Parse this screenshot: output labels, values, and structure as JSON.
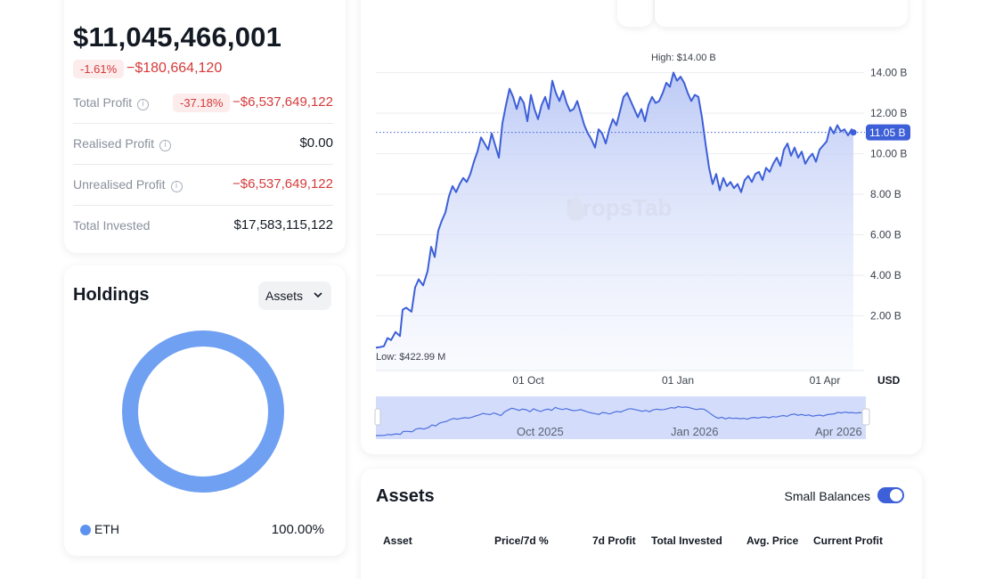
{
  "summary": {
    "total_value": "$11,045,466,001",
    "change_pct": "-1.61%",
    "change_value": "−$180,664,120",
    "rows": [
      {
        "label": "Total Profit",
        "pill": "-37.18%",
        "value": "−$6,537,649,122",
        "red": true,
        "info": true
      },
      {
        "label": "Realised Profit",
        "value": "$0.00",
        "red": false,
        "info": true
      },
      {
        "label": "Unrealised Profit",
        "value": "−$6,537,649,122",
        "red": true,
        "info": true
      },
      {
        "label": "Total Invested",
        "value": "$17,583,115,122",
        "red": false,
        "info": false
      }
    ]
  },
  "holdings": {
    "title": "Holdings",
    "select_label": "Assets",
    "legend": [
      {
        "name": "ETH",
        "pct": "100.00%",
        "color": "#5d93ef"
      }
    ]
  },
  "chart": {
    "high_label": "High: $14.00 B",
    "low_label": "Low: $422.99 M",
    "current_badge": "11.05 B",
    "currency": "USD",
    "watermark": "DropsTab",
    "navigator_labels": [
      "Oct 2025",
      "Jan 2026",
      "Apr 2026"
    ]
  },
  "chart_data": {
    "type": "area",
    "y_unit": "B",
    "ylim": [
      0,
      14.8
    ],
    "y_ticks": [
      "2.00 B",
      "4.00 B",
      "6.00 B",
      "8.00 B",
      "10.00 B",
      "12.00 B",
      "14.00 B"
    ],
    "x_ticks": [
      "01 Oct",
      "01 Jan",
      "01 Apr"
    ],
    "points": [
      [
        0,
        0.42
      ],
      [
        4,
        0.45
      ],
      [
        9,
        0.5
      ],
      [
        13,
        0.9
      ],
      [
        17,
        0.8
      ],
      [
        22,
        1.2
      ],
      [
        27,
        1.0
      ],
      [
        30,
        2.3
      ],
      [
        34,
        2.4
      ],
      [
        40,
        2.2
      ],
      [
        44,
        3.4
      ],
      [
        48,
        3.8
      ],
      [
        53,
        3.5
      ],
      [
        58,
        4.2
      ],
      [
        62,
        5.4
      ],
      [
        66,
        4.9
      ],
      [
        70,
        6.2
      ],
      [
        74,
        6.7
      ],
      [
        78,
        7.1
      ],
      [
        82,
        7.9
      ],
      [
        86,
        8.4
      ],
      [
        90,
        8.1
      ],
      [
        94,
        8.5
      ],
      [
        98,
        8.8
      ],
      [
        102,
        8.6
      ],
      [
        106,
        9.0
      ],
      [
        110,
        9.6
      ],
      [
        114,
        10.1
      ],
      [
        118,
        10.8
      ],
      [
        122,
        10.5
      ],
      [
        126,
        10.2
      ],
      [
        130,
        11.0
      ],
      [
        134,
        10.4
      ],
      [
        138,
        9.8
      ],
      [
        142,
        11.5
      ],
      [
        146,
        12.4
      ],
      [
        150,
        13.2
      ],
      [
        154,
        12.8
      ],
      [
        158,
        12.2
      ],
      [
        162,
        12.8
      ],
      [
        166,
        12.5
      ],
      [
        170,
        11.6
      ],
      [
        174,
        12.9
      ],
      [
        178,
        12.2
      ],
      [
        182,
        11.7
      ],
      [
        186,
        12.4
      ],
      [
        190,
        12.8
      ],
      [
        194,
        12.2
      ],
      [
        198,
        13.6
      ],
      [
        202,
        13.0
      ],
      [
        206,
        12.6
      ],
      [
        210,
        13.1
      ],
      [
        214,
        12.5
      ],
      [
        218,
        12.1
      ],
      [
        222,
        12.2
      ],
      [
        226,
        12.6
      ],
      [
        230,
        12.0
      ],
      [
        234,
        11.4
      ],
      [
        238,
        11.0
      ],
      [
        242,
        10.7
      ],
      [
        246,
        10.3
      ],
      [
        250,
        11.2
      ],
      [
        254,
        11.0
      ],
      [
        258,
        10.5
      ],
      [
        262,
        11.2
      ],
      [
        266,
        11.7
      ],
      [
        270,
        11.4
      ],
      [
        274,
        12.1
      ],
      [
        278,
        12.8
      ],
      [
        282,
        13.0
      ],
      [
        286,
        12.6
      ],
      [
        290,
        12.2
      ],
      [
        294,
        11.8
      ],
      [
        298,
        12.2
      ],
      [
        302,
        11.6
      ],
      [
        306,
        12.4
      ],
      [
        310,
        12.8
      ],
      [
        314,
        12.5
      ],
      [
        318,
        12.6
      ],
      [
        322,
        13.0
      ],
      [
        326,
        13.5
      ],
      [
        330,
        13.3
      ],
      [
        334,
        14.0
      ],
      [
        338,
        13.6
      ],
      [
        342,
        13.8
      ],
      [
        346,
        13.5
      ],
      [
        350,
        13.0
      ],
      [
        354,
        12.6
      ],
      [
        358,
        12.9
      ],
      [
        362,
        12.8
      ],
      [
        366,
        11.8
      ],
      [
        370,
        10.5
      ],
      [
        374,
        9.3
      ],
      [
        378,
        8.5
      ],
      [
        382,
        9.0
      ],
      [
        386,
        8.2
      ],
      [
        390,
        8.8
      ],
      [
        394,
        8.4
      ],
      [
        398,
        8.6
      ],
      [
        402,
        8.3
      ],
      [
        406,
        8.5
      ],
      [
        410,
        8.1
      ],
      [
        414,
        8.7
      ],
      [
        418,
        8.9
      ],
      [
        422,
        8.6
      ],
      [
        426,
        9.0
      ],
      [
        430,
        9.1
      ],
      [
        434,
        8.7
      ],
      [
        438,
        9.3
      ],
      [
        442,
        9.1
      ],
      [
        446,
        9.5
      ],
      [
        450,
        9.8
      ],
      [
        454,
        9.4
      ],
      [
        458,
        10.2
      ],
      [
        462,
        10.5
      ],
      [
        466,
        9.9
      ],
      [
        470,
        10.3
      ],
      [
        474,
        9.8
      ],
      [
        478,
        10.1
      ],
      [
        482,
        9.5
      ],
      [
        486,
        9.8
      ],
      [
        490,
        10.0
      ],
      [
        494,
        9.6
      ],
      [
        498,
        10.2
      ],
      [
        502,
        10.4
      ],
      [
        506,
        10.6
      ],
      [
        510,
        11.3
      ],
      [
        514,
        11.0
      ],
      [
        518,
        11.4
      ],
      [
        522,
        11.1
      ],
      [
        526,
        11.2
      ],
      [
        530,
        10.9
      ],
      [
        534,
        11.2
      ],
      [
        536,
        11.05
      ]
    ]
  }
}
